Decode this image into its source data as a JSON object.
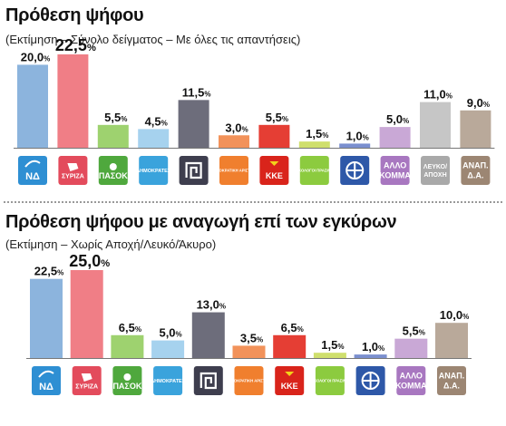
{
  "chart_data": [
    {
      "type": "bar",
      "title": "Πρόθεση ψήφου",
      "subtitle": "(Εκτίμηση – Σύνολο δείγματος – Με όλες τις απαντήσεις)",
      "categories": [
        "ΝΔ",
        "ΣΥΡΙΖΑ",
        "ΠΑΣΟΚ",
        "ΔΗΜΟΚΡΑΤΕΣ",
        "ΧΑ",
        "ΔΗΜΟΚΡΑΤΙΚΗ ΑΡΙΣΤΕΡΑ",
        "ΚΚΕ",
        "ΟΙΚΟΛΟΓΟΙ ΠΡΑΣΙΝΟΙ",
        "ΛΑΟΣ",
        "ΑΛΛΟ ΚΟΜΜΑ",
        "ΛΕΥΚΟ/ΑΠΟΧΗ",
        "ΑΝΑΠ. Δ.Α."
      ],
      "values": [
        20.0,
        22.5,
        5.5,
        4.5,
        11.5,
        3.0,
        5.5,
        1.5,
        1.0,
        5.0,
        11.0,
        9.0
      ],
      "value_labels": [
        {
          "main": "20,0",
          "pct": "%"
        },
        {
          "main": "22,5",
          "pct": "%"
        },
        {
          "main": "5,5",
          "pct": "%"
        },
        {
          "main": "4,5",
          "pct": "%"
        },
        {
          "main": "11,5",
          "pct": "%"
        },
        {
          "main": "3,0",
          "pct": "%"
        },
        {
          "main": "5,5",
          "pct": "%"
        },
        {
          "main": "1,5",
          "pct": "%"
        },
        {
          "main": "1,0",
          "pct": "%"
        },
        {
          "main": "5,0",
          "pct": "%"
        },
        {
          "main": "11,0",
          "pct": "%"
        },
        {
          "main": "9,0",
          "pct": "%"
        }
      ],
      "colors": [
        "#8cb4dd",
        "#f07e86",
        "#9ed26f",
        "#a6d2ee",
        "#6d6d7b",
        "#f2925a",
        "#e53e34",
        "#cfdf6d",
        "#7b8fcf",
        "#c9a8d6",
        "#c6c6c6",
        "#b9a99a"
      ],
      "logo_bg": [
        "#2e8fd3",
        "#e34b5c",
        "#4fa83d",
        "#3aa3dc",
        "#3e3e4e",
        "#f07f2e",
        "#d9241b",
        "#8ccb3f",
        "#2e58a8",
        "#a877c0",
        "#a9a9a9",
        "#9c8673"
      ],
      "logo_text": [
        "ΝΔ",
        "ΣΥΡΙΖΑ",
        "ΠΑΣΟΚ",
        "ΔΗΜΟΚΡΑΤΕΣ",
        "",
        "ΔΗΜΟΚΡΑΤΙΚΗ ΑΡΙΣΤΕΡΑ",
        "ΚΚΕ",
        "ΟΙΚΟΛΟΓΟΙ ΠΡΑΣΙΝΟΙ",
        "",
        "ΑΛΛΟ|ΚΟΜΜΑ",
        "ΛΕΥΚΟ/|ΑΠΟΧΗ",
        "ΑΝΑΠ.|Δ.Α."
      ],
      "logo_icons": [
        "nd-icon",
        "syriza-icon",
        "pasok-sun-icon",
        "dimokrates-icon",
        "meander-icon",
        "dimar-icon",
        "kke-icon",
        "green-icon",
        "laos-icon",
        "other-party-icon",
        "blank-abstain-icon",
        "undecided-icon"
      ],
      "ylim": [
        0,
        22.5
      ]
    },
    {
      "type": "bar",
      "title": "Πρόθεση ψήφου με αναγωγή επί των εγκύρων",
      "subtitle": "(Εκτίμηση – Χωρίς Αποχή/Λευκό/Άκυρο)",
      "categories": [
        "ΝΔ",
        "ΣΥΡΙΖΑ",
        "ΠΑΣΟΚ",
        "ΔΗΜΟΚΡΑΤΕΣ",
        "ΧΑ",
        "ΔΗΜΟΚΡΑΤΙΚΗ ΑΡΙΣΤΕΡΑ",
        "ΚΚΕ",
        "ΟΙΚΟΛΟΓΟΙ ΠΡΑΣΙΝΟΙ",
        "ΛΑΟΣ",
        "ΑΛΛΟ ΚΟΜΜΑ",
        "ΑΝΑΠ. Δ.Α."
      ],
      "values": [
        22.5,
        25.0,
        6.5,
        5.0,
        13.0,
        3.5,
        6.5,
        1.5,
        1.0,
        5.5,
        10.0
      ],
      "value_labels": [
        {
          "main": "22,5",
          "pct": "%"
        },
        {
          "main": "25,0",
          "pct": "%"
        },
        {
          "main": "6,5",
          "pct": "%"
        },
        {
          "main": "5,0",
          "pct": "%"
        },
        {
          "main": "13,0",
          "pct": "%"
        },
        {
          "main": "3,5",
          "pct": "%"
        },
        {
          "main": "6,5",
          "pct": "%"
        },
        {
          "main": "1,5",
          "pct": "%"
        },
        {
          "main": "1,0",
          "pct": "%"
        },
        {
          "main": "5,5",
          "pct": "%"
        },
        {
          "main": "10,0",
          "pct": "%"
        }
      ],
      "colors": [
        "#8cb4dd",
        "#f07e86",
        "#9ed26f",
        "#a6d2ee",
        "#6d6d7b",
        "#f2925a",
        "#e53e34",
        "#cfdf6d",
        "#7b8fcf",
        "#c9a8d6",
        "#b9a99a"
      ],
      "logo_bg": [
        "#2e8fd3",
        "#e34b5c",
        "#4fa83d",
        "#3aa3dc",
        "#3e3e4e",
        "#f07f2e",
        "#d9241b",
        "#8ccb3f",
        "#2e58a8",
        "#a877c0",
        "#9c8673"
      ],
      "logo_text": [
        "ΝΔ",
        "ΣΥΡΙΖΑ",
        "ΠΑΣΟΚ",
        "ΔΗΜΟΚΡΑΤΕΣ",
        "",
        "ΔΗΜΟΚΡΑΤΙΚΗ ΑΡΙΣΤΕΡΑ",
        "ΚΚΕ",
        "ΟΙΚΟΛΟΓΟΙ ΠΡΑΣΙΝΟΙ",
        "",
        "ΑΛΛΟ|ΚΟΜΜΑ",
        "ΑΝΑΠ.|Δ.Α."
      ],
      "logo_icons": [
        "nd-icon",
        "syriza-icon",
        "pasok-sun-icon",
        "dimokrates-icon",
        "meander-icon",
        "dimar-icon",
        "kke-icon",
        "green-icon",
        "laos-icon",
        "other-party-icon",
        "undecided-icon"
      ],
      "ylim": [
        0,
        25.0
      ]
    }
  ]
}
